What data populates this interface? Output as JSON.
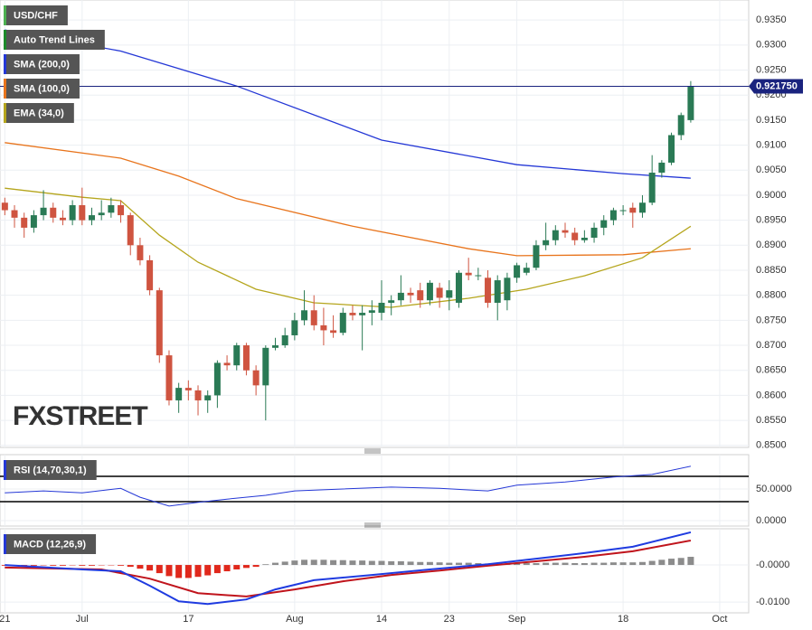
{
  "chart_data": [
    {
      "type": "candlestick",
      "title": "USD/CHF",
      "up_color": "#2a7a55",
      "down_color": "#cf5440",
      "open": [
        0.8985,
        0.897,
        0.8955,
        0.8935,
        0.896,
        0.8975,
        0.8955,
        0.895,
        0.898,
        0.895,
        0.896,
        0.8965,
        0.898,
        0.896,
        0.89,
        0.887,
        0.881,
        0.868,
        0.859,
        0.8615,
        0.861,
        0.859,
        0.86,
        0.8665,
        0.866,
        0.87,
        0.865,
        0.862,
        0.8695,
        0.87,
        0.872,
        0.875,
        0.877,
        0.874,
        0.873,
        0.8725,
        0.8765,
        0.876,
        0.8765,
        0.8765,
        0.8785,
        0.879,
        0.8805,
        0.881,
        0.879,
        0.8815,
        0.8795,
        0.8785,
        0.8845,
        0.884,
        0.8835,
        0.8785,
        0.879,
        0.8835,
        0.8845,
        0.8855,
        0.89,
        0.891,
        0.893,
        0.8925,
        0.891,
        0.8915,
        0.8935,
        0.895,
        0.897,
        0.8975,
        0.8965,
        0.8985,
        0.9045,
        0.9065,
        0.912,
        0.915
      ],
      "high": [
        0.8995,
        0.898,
        0.8965,
        0.897,
        0.901,
        0.8985,
        0.897,
        0.899,
        0.9015,
        0.8975,
        0.899,
        0.8995,
        0.899,
        0.8965,
        0.8915,
        0.888,
        0.8815,
        0.869,
        0.8625,
        0.863,
        0.862,
        0.861,
        0.867,
        0.868,
        0.8705,
        0.8705,
        0.866,
        0.87,
        0.8715,
        0.8735,
        0.8765,
        0.881,
        0.88,
        0.8775,
        0.876,
        0.8775,
        0.878,
        0.878,
        0.879,
        0.883,
        0.88,
        0.884,
        0.8815,
        0.8825,
        0.883,
        0.8825,
        0.883,
        0.885,
        0.8875,
        0.8855,
        0.885,
        0.884,
        0.8845,
        0.8865,
        0.8865,
        0.891,
        0.8945,
        0.894,
        0.8945,
        0.8935,
        0.893,
        0.8945,
        0.896,
        0.8975,
        0.898,
        0.8985,
        0.9,
        0.908,
        0.907,
        0.9125,
        0.9165,
        0.9228
      ],
      "low": [
        0.896,
        0.8935,
        0.8915,
        0.8925,
        0.895,
        0.8945,
        0.894,
        0.894,
        0.894,
        0.894,
        0.895,
        0.8955,
        0.8945,
        0.888,
        0.886,
        0.88,
        0.8665,
        0.858,
        0.8565,
        0.859,
        0.856,
        0.8565,
        0.8575,
        0.865,
        0.865,
        0.864,
        0.86,
        0.855,
        0.869,
        0.8695,
        0.871,
        0.874,
        0.873,
        0.87,
        0.8715,
        0.872,
        0.875,
        0.869,
        0.874,
        0.875,
        0.876,
        0.878,
        0.8785,
        0.8775,
        0.878,
        0.8775,
        0.877,
        0.8775,
        0.883,
        0.883,
        0.8775,
        0.875,
        0.877,
        0.8825,
        0.884,
        0.885,
        0.889,
        0.89,
        0.8915,
        0.89,
        0.8905,
        0.8905,
        0.892,
        0.894,
        0.896,
        0.8935,
        0.8955,
        0.898,
        0.9035,
        0.906,
        0.911,
        0.9145
      ],
      "close": [
        0.897,
        0.8955,
        0.8935,
        0.896,
        0.8975,
        0.8955,
        0.895,
        0.898,
        0.895,
        0.896,
        0.8965,
        0.898,
        0.896,
        0.89,
        0.887,
        0.881,
        0.868,
        0.859,
        0.8615,
        0.861,
        0.859,
        0.86,
        0.8665,
        0.866,
        0.87,
        0.865,
        0.862,
        0.8695,
        0.87,
        0.872,
        0.875,
        0.877,
        0.874,
        0.873,
        0.8725,
        0.8765,
        0.876,
        0.8765,
        0.877,
        0.8785,
        0.879,
        0.8805,
        0.88,
        0.879,
        0.8825,
        0.8795,
        0.881,
        0.8845,
        0.884,
        0.884,
        0.8785,
        0.883,
        0.8835,
        0.886,
        0.8855,
        0.89,
        0.891,
        0.893,
        0.8925,
        0.891,
        0.8915,
        0.8935,
        0.895,
        0.897,
        0.897,
        0.8965,
        0.8985,
        0.9045,
        0.9065,
        0.912,
        0.916,
        0.92175
      ],
      "series": [
        {
          "name": "SMA (200,0)",
          "color": "#2437d6",
          "x": [
            0,
            12,
            24,
            39,
            53,
            64,
            71
          ],
          "values": [
            0.933,
            0.9288,
            0.9218,
            0.911,
            0.9061,
            0.9043,
            0.9034
          ]
        },
        {
          "name": "SMA (100,0)",
          "color": "#e8741c",
          "x": [
            0,
            12,
            18,
            24,
            36,
            48,
            53,
            64,
            71
          ],
          "values": [
            0.9105,
            0.9074,
            0.9038,
            0.8993,
            0.8938,
            0.8893,
            0.8879,
            0.8881,
            0.8893
          ]
        },
        {
          "name": "EMA (34,0)",
          "color": "#b5a51c",
          "x": [
            0,
            8,
            12,
            16,
            20,
            26,
            32,
            40,
            48,
            54,
            60,
            66,
            71
          ],
          "values": [
            0.9014,
            0.8996,
            0.8989,
            0.892,
            0.8866,
            0.8812,
            0.8785,
            0.8776,
            0.8794,
            0.8812,
            0.8839,
            0.8875,
            0.8938
          ]
        }
      ],
      "auto_trend_lines": {
        "name": "Auto Trend Lines",
        "color": "#1c8a2a"
      },
      "title_color": "#4caf50",
      "last_price": {
        "value": 0.92175,
        "label": "0.921750",
        "color": "#1a237e"
      },
      "watermark": "FXSTREET",
      "xlim": [
        -0.5,
        77
      ],
      "xticks": [
        {
          "value": 0,
          "label": "21"
        },
        {
          "value": 8,
          "label": "Jul"
        },
        {
          "value": 19,
          "label": "17"
        },
        {
          "value": 30,
          "label": "Aug"
        },
        {
          "value": 39,
          "label": "14"
        },
        {
          "value": 46,
          "label": "23"
        },
        {
          "value": 53,
          "label": "Sep"
        },
        {
          "value": 64,
          "label": "18"
        },
        {
          "value": 74,
          "label": "Oct"
        }
      ],
      "ylim": [
        0.8496,
        0.939
      ],
      "yticks": [
        {
          "value": 0.935,
          "label": "0.9350"
        },
        {
          "value": 0.93,
          "label": "0.9300"
        },
        {
          "value": 0.925,
          "label": "0.9250"
        },
        {
          "value": 0.92,
          "label": "0.9200"
        },
        {
          "value": 0.915,
          "label": "0.9150"
        },
        {
          "value": 0.91,
          "label": "0.9100"
        },
        {
          "value": 0.905,
          "label": "0.9050"
        },
        {
          "value": 0.9,
          "label": "0.9000"
        },
        {
          "value": 0.895,
          "label": "0.8950"
        },
        {
          "value": 0.89,
          "label": "0.8900"
        },
        {
          "value": 0.885,
          "label": "0.8850"
        },
        {
          "value": 0.88,
          "label": "0.8800"
        },
        {
          "value": 0.875,
          "label": "0.8750"
        },
        {
          "value": 0.87,
          "label": "0.8700"
        },
        {
          "value": 0.865,
          "label": "0.8650"
        },
        {
          "value": 0.86,
          "label": "0.8600"
        },
        {
          "value": 0.855,
          "label": "0.8550"
        },
        {
          "value": 0.85,
          "label": "0.8500"
        }
      ]
    },
    {
      "type": "line",
      "title": "RSI (14,70,30,1)",
      "color": "#2437d6",
      "title_color": "#2437d6",
      "x": [
        0,
        4,
        8,
        12,
        14,
        17,
        20,
        23,
        27,
        30,
        35,
        40,
        45,
        50,
        53,
        58,
        63,
        67,
        71
      ],
      "values": [
        44,
        47,
        44,
        51,
        37,
        23,
        29,
        34,
        40,
        47,
        50,
        53,
        51,
        47,
        56,
        61,
        69,
        73,
        86
      ],
      "bands": [
        70,
        30
      ],
      "ylim": [
        -8.6,
        104.3
      ],
      "yticks": [
        {
          "value": 50,
          "label": "50.0000"
        },
        {
          "value": 0,
          "label": "0.0000"
        }
      ]
    },
    {
      "type": "macd",
      "title": "MACD (12,26,9)",
      "title_color": "#2437d6",
      "macd": {
        "color": "#1f3be0",
        "x": [
          0,
          8,
          12,
          15,
          18,
          21,
          25,
          28,
          32,
          38,
          44,
          50,
          55,
          60,
          65,
          71
        ],
        "values": [
          0,
          -0.0012,
          -0.0017,
          -0.0056,
          -0.0098,
          -0.0105,
          -0.0093,
          -0.0066,
          -0.0041,
          -0.0027,
          -0.0012,
          0.0002,
          0.0017,
          0.0032,
          0.0049,
          0.0088
        ]
      },
      "signal": {
        "color": "#c0141c",
        "x": [
          0,
          10,
          15,
          20,
          25,
          30,
          35,
          40,
          45,
          50,
          55,
          60,
          65,
          71
        ],
        "values": [
          -0.0007,
          -0.0012,
          -0.0037,
          -0.0076,
          -0.0085,
          -0.0066,
          -0.0044,
          -0.0027,
          -0.0015,
          -0.0002,
          0.001,
          0.0022,
          0.0037,
          0.0066
        ]
      },
      "histogram": [
        -0.0002,
        -0.0002,
        -0.0003,
        -0.0002,
        -0.0001,
        -0.0002,
        -0.0002,
        -0.0001,
        -0.0002,
        -0.0002,
        -0.0001,
        -0.0001,
        -0.0002,
        -0.0005,
        -0.001,
        -0.0015,
        -0.0022,
        -0.003,
        -0.0035,
        -0.0035,
        -0.0032,
        -0.0028,
        -0.0022,
        -0.0017,
        -0.0012,
        -0.0008,
        -0.0005,
        0.0002,
        0.0006,
        0.0009,
        0.0012,
        0.0014,
        0.0014,
        0.0014,
        0.0013,
        0.0013,
        0.0012,
        0.0012,
        0.0011,
        0.0011,
        0.001,
        0.001,
        0.0009,
        0.0008,
        0.0008,
        0.0007,
        0.0006,
        0.0006,
        0.0006,
        0.0005,
        0.0004,
        0.0004,
        0.0004,
        0.0005,
        0.0005,
        0.0005,
        0.0006,
        0.0006,
        0.0006,
        0.0005,
        0.0005,
        0.0006,
        0.0006,
        0.0007,
        0.0007,
        0.0007,
        0.0008,
        0.0011,
        0.0014,
        0.0017,
        0.0019,
        0.0022
      ],
      "up_color": "#8c8c8c",
      "down_color": "#e0281c",
      "ylim": [
        -0.0129,
        0.00976
      ],
      "yticks": [
        {
          "value": 0,
          "label": "-0.0000"
        },
        {
          "value": -0.01,
          "label": "-0.0100"
        }
      ]
    }
  ]
}
